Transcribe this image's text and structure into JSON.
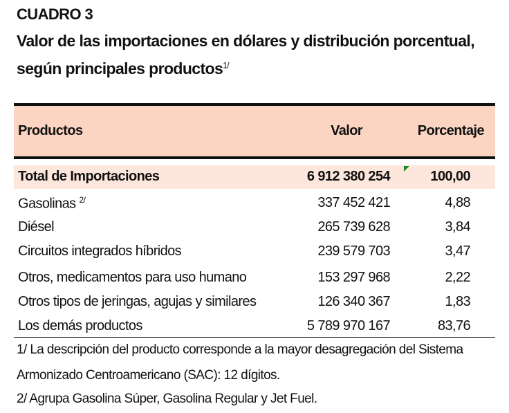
{
  "title": {
    "label": "CUADRO 3",
    "line1": "Valor de las importaciones en dólares y distribución porcentual,",
    "line2": "según principales productos",
    "line2_note": "1/"
  },
  "table": {
    "headers": [
      "Productos",
      "Valor",
      "Porcentaje"
    ],
    "total": {
      "product": "Total de Importaciones",
      "value": "6 912 380 254",
      "percent": "100,00"
    },
    "rows": [
      {
        "product": "Gasolinas",
        "note": "2/",
        "value": "337 452 421",
        "percent": "4,88"
      },
      {
        "product": "Diésel",
        "value": "265 739 628",
        "percent": "3,84"
      },
      {
        "product": "Circuitos integrados híbridos",
        "value": "239 579 703",
        "percent": "3,47"
      },
      {
        "product": "Otros, medicamentos para uso humano",
        "value": "153 297 968",
        "percent": "2,22"
      },
      {
        "product": "Otros tipos de jeringas, agujas y similares",
        "value": "126 340 367",
        "percent": "1,83"
      },
      {
        "product": "Los demás productos",
        "value": "5 789 970 167",
        "percent": "83,76"
      }
    ]
  },
  "footnotes": [
    "1/ La descripción del producto corresponde a la mayor desagregación del Sistema",
    "Armonizado Centroamericano (SAC): 12 dígitos.",
    "2/ Agrupa Gasolina Súper, Gasolina Regular y Jet Fuel."
  ],
  "colors": {
    "header": "#fcd5c2",
    "total": "#fde6dc"
  }
}
